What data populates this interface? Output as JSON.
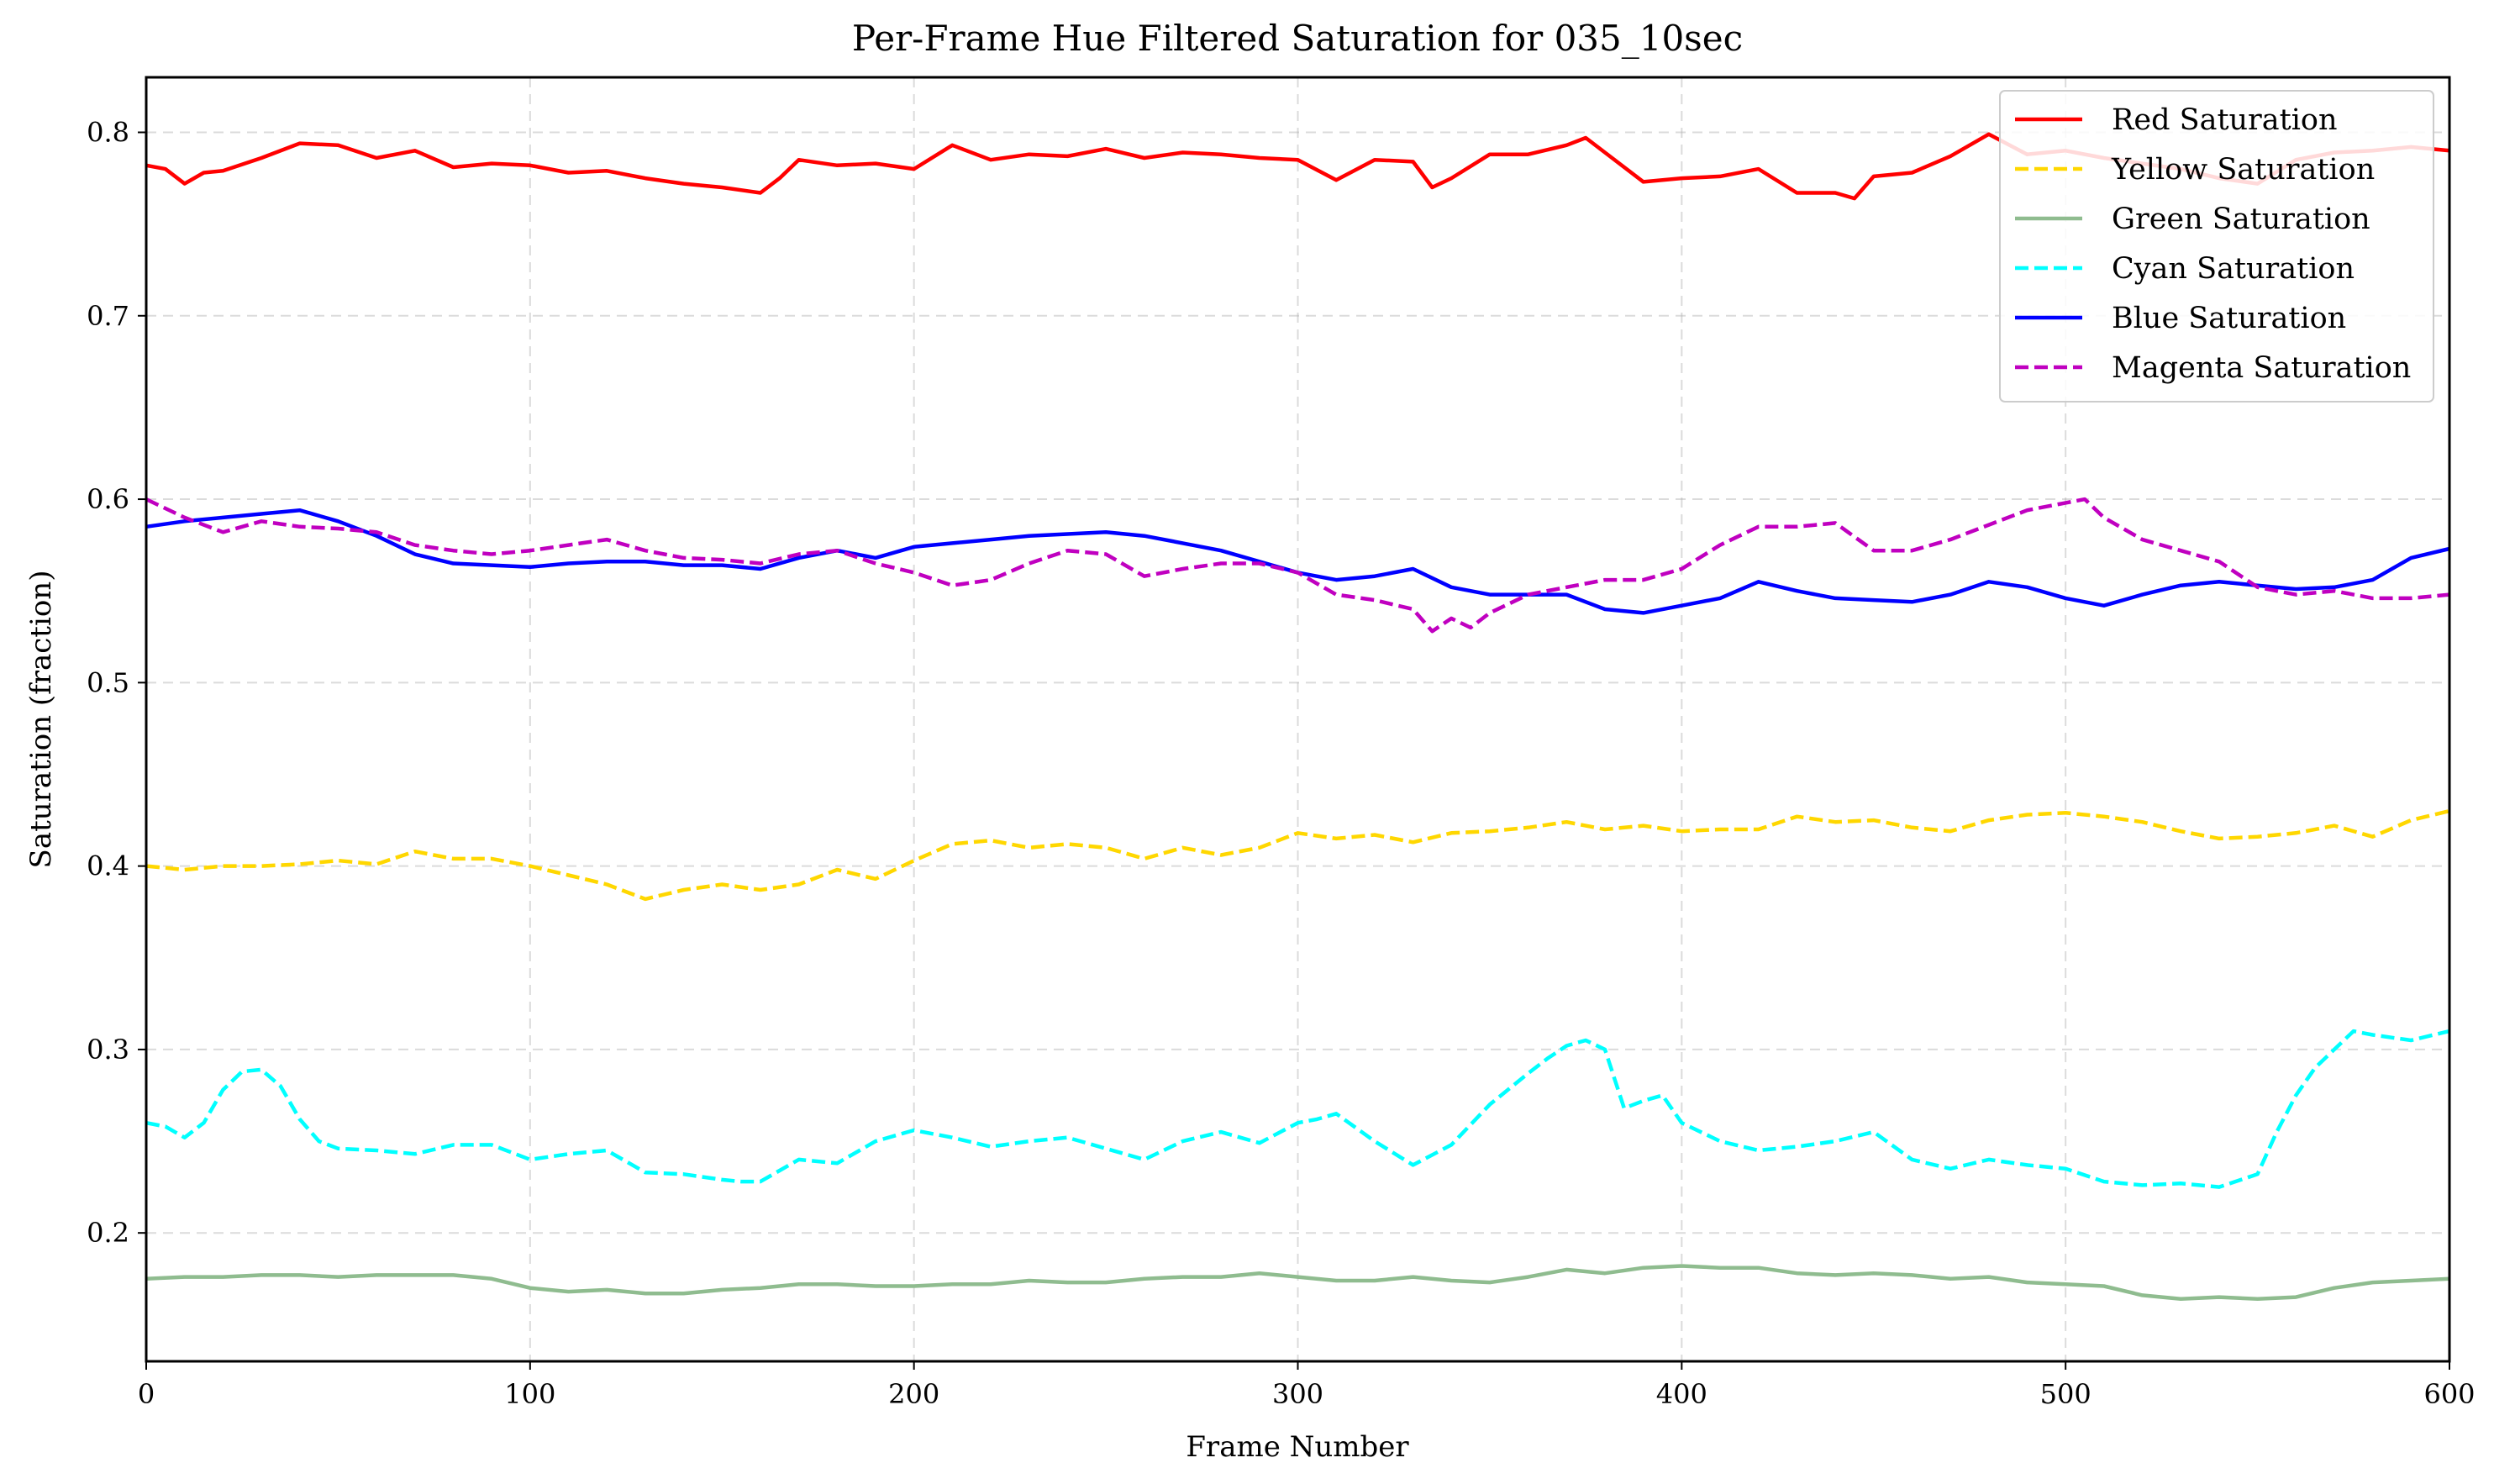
{
  "chart_data": {
    "type": "line",
    "title": "Per-Frame Hue Filtered Saturation for 035_10sec",
    "xlabel": "Frame Number",
    "ylabel": "Saturation (fraction)",
    "xlim": [
      0,
      600
    ],
    "ylim": [
      0.13,
      0.83
    ],
    "xticks": [
      0,
      100,
      200,
      300,
      400,
      500,
      600
    ],
    "yticks": [
      0.2,
      0.3,
      0.4,
      0.5,
      0.6,
      0.7,
      0.8
    ],
    "xtick_labels": [
      "0",
      "100",
      "200",
      "300",
      "400",
      "500",
      "600"
    ],
    "ytick_labels": [
      "0.2",
      "0.3",
      "0.4",
      "0.5",
      "0.6",
      "0.7",
      "0.8"
    ],
    "grid": true,
    "legend_position": "top-right",
    "series": [
      {
        "name": "Red Saturation",
        "color": "#ff0000",
        "dash": "solid",
        "x": [
          0,
          5,
          10,
          15,
          20,
          30,
          40,
          50,
          60,
          70,
          80,
          90,
          100,
          110,
          120,
          130,
          140,
          150,
          160,
          165,
          170,
          180,
          190,
          200,
          210,
          220,
          230,
          240,
          250,
          260,
          270,
          280,
          290,
          300,
          310,
          320,
          330,
          335,
          340,
          350,
          360,
          370,
          375,
          380,
          390,
          400,
          410,
          420,
          430,
          440,
          445,
          450,
          460,
          470,
          480,
          490,
          500,
          510,
          520,
          530,
          540,
          550,
          560,
          570,
          580,
          590,
          600
        ],
        "y": [
          0.782,
          0.78,
          0.772,
          0.778,
          0.779,
          0.786,
          0.794,
          0.793,
          0.786,
          0.79,
          0.781,
          0.783,
          0.782,
          0.778,
          0.779,
          0.775,
          0.772,
          0.77,
          0.767,
          0.775,
          0.785,
          0.782,
          0.783,
          0.78,
          0.793,
          0.785,
          0.788,
          0.787,
          0.791,
          0.786,
          0.789,
          0.788,
          0.786,
          0.785,
          0.774,
          0.785,
          0.784,
          0.77,
          0.775,
          0.788,
          0.788,
          0.793,
          0.797,
          0.789,
          0.773,
          0.775,
          0.776,
          0.78,
          0.767,
          0.767,
          0.764,
          0.776,
          0.778,
          0.787,
          0.799,
          0.788,
          0.79,
          0.786,
          0.783,
          0.78,
          0.775,
          0.772,
          0.785,
          0.789,
          0.79,
          0.792,
          0.79
        ]
      },
      {
        "name": "Yellow Saturation",
        "color": "#ffd700",
        "dash": "dashed",
        "x": [
          0,
          10,
          20,
          30,
          40,
          50,
          60,
          70,
          80,
          90,
          100,
          110,
          120,
          130,
          140,
          150,
          160,
          170,
          180,
          190,
          200,
          210,
          220,
          230,
          240,
          250,
          260,
          270,
          280,
          290,
          300,
          310,
          320,
          330,
          340,
          350,
          360,
          370,
          380,
          390,
          400,
          410,
          420,
          430,
          440,
          450,
          460,
          470,
          480,
          490,
          500,
          510,
          520,
          530,
          540,
          550,
          560,
          570,
          580,
          590,
          600
        ],
        "y": [
          0.4,
          0.398,
          0.4,
          0.4,
          0.401,
          0.403,
          0.401,
          0.408,
          0.404,
          0.404,
          0.4,
          0.395,
          0.39,
          0.382,
          0.387,
          0.39,
          0.387,
          0.39,
          0.398,
          0.393,
          0.403,
          0.412,
          0.414,
          0.41,
          0.412,
          0.41,
          0.404,
          0.41,
          0.406,
          0.41,
          0.418,
          0.415,
          0.417,
          0.413,
          0.418,
          0.419,
          0.421,
          0.424,
          0.42,
          0.422,
          0.419,
          0.42,
          0.42,
          0.427,
          0.424,
          0.425,
          0.421,
          0.419,
          0.425,
          0.428,
          0.429,
          0.427,
          0.424,
          0.419,
          0.415,
          0.416,
          0.418,
          0.422,
          0.416,
          0.425,
          0.43
        ]
      },
      {
        "name": "Green Saturation",
        "color": "#8fbc8f",
        "dash": "solid",
        "x": [
          0,
          10,
          20,
          30,
          40,
          50,
          60,
          70,
          80,
          90,
          100,
          110,
          120,
          130,
          140,
          150,
          160,
          170,
          180,
          190,
          200,
          210,
          220,
          230,
          240,
          250,
          260,
          270,
          280,
          290,
          300,
          310,
          320,
          330,
          340,
          350,
          360,
          370,
          380,
          390,
          400,
          410,
          420,
          430,
          440,
          450,
          460,
          470,
          480,
          490,
          500,
          510,
          520,
          530,
          540,
          550,
          560,
          570,
          580,
          590,
          600
        ],
        "y": [
          0.175,
          0.176,
          0.176,
          0.177,
          0.177,
          0.176,
          0.177,
          0.177,
          0.177,
          0.175,
          0.17,
          0.168,
          0.169,
          0.167,
          0.167,
          0.169,
          0.17,
          0.172,
          0.172,
          0.171,
          0.171,
          0.172,
          0.172,
          0.174,
          0.173,
          0.173,
          0.175,
          0.176,
          0.176,
          0.178,
          0.176,
          0.174,
          0.174,
          0.176,
          0.174,
          0.173,
          0.176,
          0.18,
          0.178,
          0.181,
          0.182,
          0.181,
          0.181,
          0.178,
          0.177,
          0.178,
          0.177,
          0.175,
          0.176,
          0.173,
          0.172,
          0.171,
          0.166,
          0.164,
          0.165,
          0.164,
          0.165,
          0.17,
          0.173,
          0.174,
          0.175
        ]
      },
      {
        "name": "Cyan Saturation",
        "color": "#00ffff",
        "dash": "dashed",
        "x": [
          0,
          5,
          10,
          15,
          20,
          25,
          30,
          35,
          40,
          45,
          50,
          60,
          70,
          80,
          90,
          100,
          110,
          120,
          130,
          140,
          150,
          155,
          160,
          170,
          180,
          190,
          200,
          210,
          220,
          230,
          240,
          250,
          260,
          270,
          280,
          290,
          300,
          305,
          310,
          320,
          330,
          340,
          350,
          360,
          365,
          370,
          375,
          380,
          385,
          390,
          395,
          400,
          410,
          420,
          430,
          440,
          450,
          460,
          470,
          480,
          490,
          500,
          510,
          520,
          530,
          540,
          550,
          555,
          560,
          565,
          570,
          575,
          580,
          590,
          600
        ],
        "y": [
          0.26,
          0.258,
          0.252,
          0.26,
          0.278,
          0.288,
          0.289,
          0.28,
          0.262,
          0.25,
          0.246,
          0.245,
          0.243,
          0.248,
          0.248,
          0.24,
          0.243,
          0.245,
          0.233,
          0.232,
          0.229,
          0.228,
          0.228,
          0.24,
          0.238,
          0.25,
          0.256,
          0.252,
          0.247,
          0.25,
          0.252,
          0.246,
          0.24,
          0.25,
          0.255,
          0.249,
          0.26,
          0.262,
          0.265,
          0.25,
          0.237,
          0.248,
          0.27,
          0.287,
          0.295,
          0.302,
          0.305,
          0.3,
          0.268,
          0.272,
          0.275,
          0.26,
          0.25,
          0.245,
          0.247,
          0.25,
          0.255,
          0.24,
          0.235,
          0.24,
          0.237,
          0.235,
          0.228,
          0.226,
          0.227,
          0.225,
          0.232,
          0.255,
          0.275,
          0.29,
          0.3,
          0.31,
          0.308,
          0.305,
          0.31
        ]
      },
      {
        "name": "Blue Saturation",
        "color": "#0000ff",
        "dash": "solid",
        "x": [
          0,
          10,
          20,
          30,
          40,
          50,
          60,
          70,
          80,
          90,
          100,
          110,
          120,
          130,
          140,
          150,
          160,
          170,
          180,
          190,
          200,
          210,
          220,
          230,
          240,
          250,
          260,
          270,
          280,
          290,
          300,
          310,
          320,
          330,
          340,
          350,
          360,
          370,
          380,
          390,
          400,
          410,
          420,
          430,
          440,
          450,
          460,
          470,
          480,
          490,
          500,
          510,
          520,
          530,
          540,
          550,
          560,
          570,
          580,
          590,
          600
        ],
        "y": [
          0.585,
          0.588,
          0.59,
          0.592,
          0.594,
          0.588,
          0.58,
          0.57,
          0.565,
          0.564,
          0.563,
          0.565,
          0.566,
          0.566,
          0.564,
          0.564,
          0.562,
          0.568,
          0.572,
          0.568,
          0.574,
          0.576,
          0.578,
          0.58,
          0.581,
          0.582,
          0.58,
          0.576,
          0.572,
          0.566,
          0.56,
          0.556,
          0.558,
          0.562,
          0.552,
          0.548,
          0.548,
          0.548,
          0.54,
          0.538,
          0.542,
          0.546,
          0.555,
          0.55,
          0.546,
          0.545,
          0.544,
          0.548,
          0.555,
          0.552,
          0.546,
          0.542,
          0.548,
          0.553,
          0.555,
          0.553,
          0.551,
          0.552,
          0.556,
          0.568,
          0.573
        ]
      },
      {
        "name": "Magenta Saturation",
        "color": "#c000c0",
        "dash": "dashed",
        "x": [
          0,
          10,
          20,
          30,
          40,
          50,
          60,
          70,
          80,
          90,
          100,
          110,
          120,
          130,
          140,
          150,
          160,
          170,
          180,
          190,
          200,
          210,
          220,
          230,
          240,
          250,
          260,
          270,
          280,
          290,
          300,
          310,
          320,
          330,
          335,
          340,
          345,
          350,
          360,
          370,
          380,
          390,
          400,
          410,
          420,
          430,
          440,
          450,
          460,
          470,
          480,
          490,
          500,
          505,
          510,
          520,
          530,
          540,
          550,
          560,
          570,
          580,
          590,
          600
        ],
        "y": [
          0.6,
          0.59,
          0.582,
          0.588,
          0.585,
          0.584,
          0.582,
          0.575,
          0.572,
          0.57,
          0.572,
          0.575,
          0.578,
          0.572,
          0.568,
          0.567,
          0.565,
          0.57,
          0.572,
          0.565,
          0.56,
          0.553,
          0.556,
          0.565,
          0.572,
          0.57,
          0.558,
          0.562,
          0.565,
          0.565,
          0.56,
          0.548,
          0.545,
          0.54,
          0.528,
          0.535,
          0.53,
          0.538,
          0.548,
          0.552,
          0.556,
          0.556,
          0.562,
          0.575,
          0.585,
          0.585,
          0.587,
          0.572,
          0.572,
          0.578,
          0.586,
          0.594,
          0.598,
          0.6,
          0.59,
          0.578,
          0.572,
          0.566,
          0.552,
          0.548,
          0.55,
          0.546,
          0.546,
          0.548
        ]
      }
    ]
  }
}
